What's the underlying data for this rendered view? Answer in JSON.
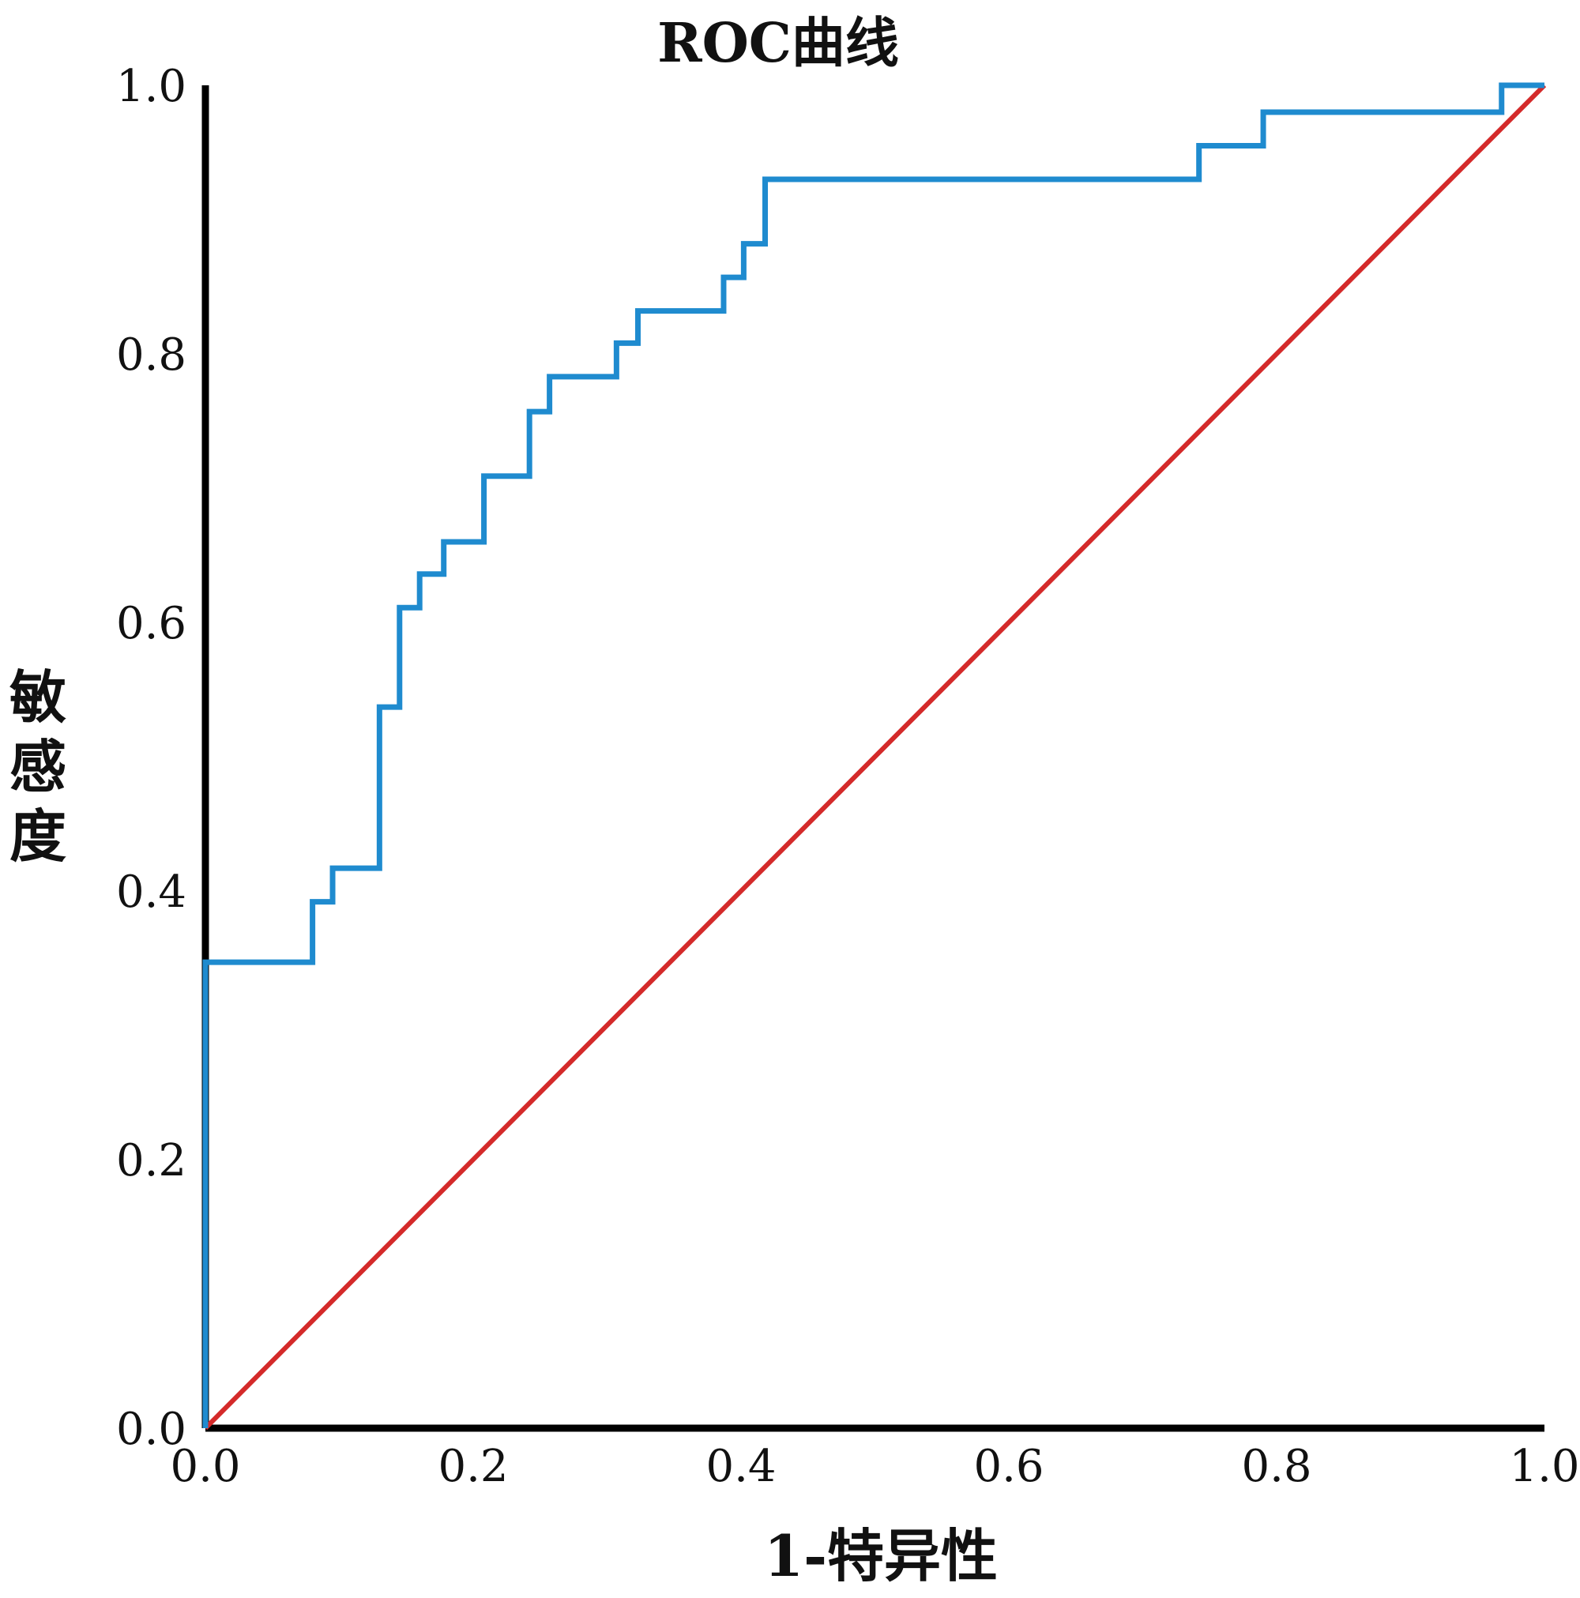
{
  "chart_data": {
    "type": "line",
    "title": "ROC曲线",
    "xlabel": "1-特异性",
    "ylabel": "敏感度",
    "xlim": [
      0,
      1
    ],
    "ylim": [
      0,
      1
    ],
    "x_ticks": [
      "0.0",
      "0.2",
      "0.4",
      "0.6",
      "0.8",
      "1.0"
    ],
    "y_ticks": [
      "0.0",
      "0.2",
      "0.4",
      "0.6",
      "0.8",
      "1.0"
    ],
    "grid": false,
    "legend": "none",
    "series": [
      {
        "color": "#1f8bcf",
        "style": "step",
        "points": [
          [
            0.0,
            0.0
          ],
          [
            0.0,
            0.347
          ],
          [
            0.08,
            0.347
          ],
          [
            0.08,
            0.392
          ],
          [
            0.095,
            0.392
          ],
          [
            0.095,
            0.417
          ],
          [
            0.13,
            0.417
          ],
          [
            0.13,
            0.537
          ],
          [
            0.145,
            0.537
          ],
          [
            0.145,
            0.611
          ],
          [
            0.16,
            0.611
          ],
          [
            0.16,
            0.636
          ],
          [
            0.178,
            0.636
          ],
          [
            0.178,
            0.66
          ],
          [
            0.208,
            0.66
          ],
          [
            0.208,
            0.709
          ],
          [
            0.242,
            0.709
          ],
          [
            0.242,
            0.757
          ],
          [
            0.257,
            0.757
          ],
          [
            0.257,
            0.783
          ],
          [
            0.307,
            0.783
          ],
          [
            0.307,
            0.808
          ],
          [
            0.323,
            0.808
          ],
          [
            0.323,
            0.832
          ],
          [
            0.387,
            0.832
          ],
          [
            0.387,
            0.857
          ],
          [
            0.402,
            0.857
          ],
          [
            0.402,
            0.882
          ],
          [
            0.418,
            0.882
          ],
          [
            0.418,
            0.93
          ],
          [
            0.742,
            0.93
          ],
          [
            0.742,
            0.955
          ],
          [
            0.79,
            0.955
          ],
          [
            0.79,
            0.98
          ],
          [
            0.968,
            0.98
          ],
          [
            0.968,
            1.0
          ],
          [
            1.0,
            1.0
          ]
        ]
      },
      {
        "color": "#d42a2a",
        "style": "diagonal",
        "points": [
          [
            0.0,
            0.0
          ],
          [
            1.0,
            1.0
          ]
        ]
      }
    ]
  }
}
